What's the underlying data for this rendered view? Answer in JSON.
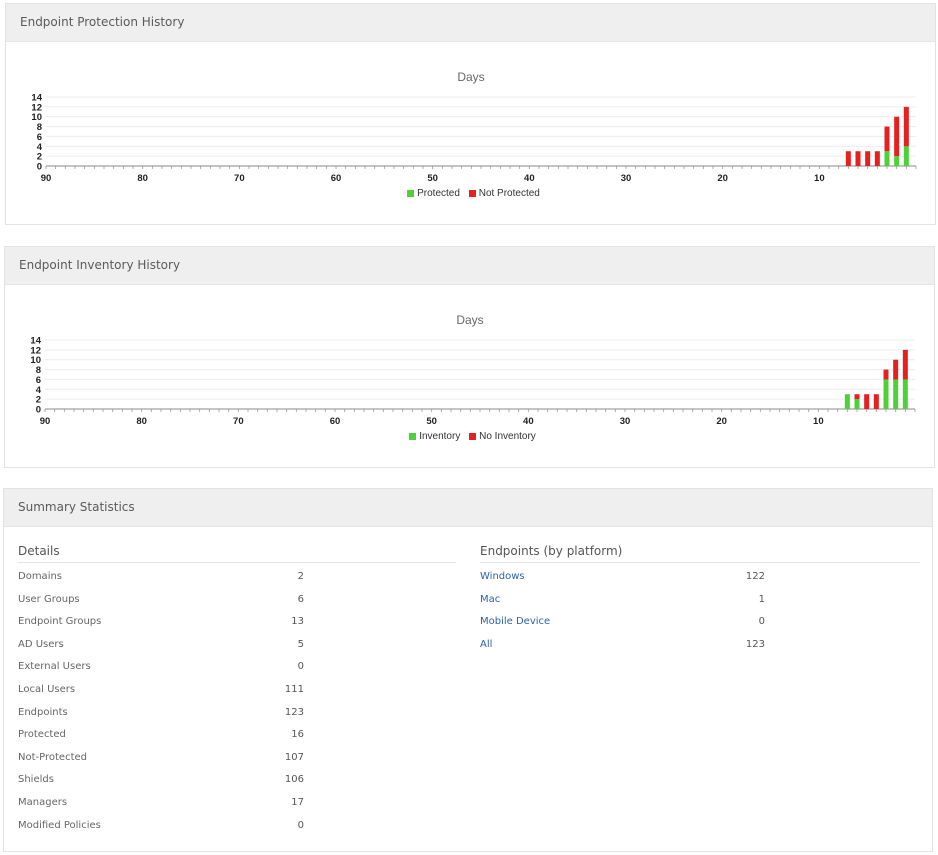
{
  "protection_panel": {
    "title": "Endpoint Protection History",
    "legend": [
      {
        "label": "Protected",
        "color": "#4cd137"
      },
      {
        "label": "Not Protected",
        "color": "#e62020"
      }
    ]
  },
  "inventory_panel": {
    "title": "Endpoint Inventory History",
    "legend": [
      {
        "label": "Inventory",
        "color": "#4cd137"
      },
      {
        "label": "No Inventory",
        "color": "#e62020"
      }
    ]
  },
  "summary_panel": {
    "title": "Summary Statistics",
    "details_heading": "Details",
    "details": [
      {
        "label": "Domains",
        "value": "2"
      },
      {
        "label": "User Groups",
        "value": "6"
      },
      {
        "label": "Endpoint Groups",
        "value": "13"
      },
      {
        "label": "AD Users",
        "value": "5"
      },
      {
        "label": "External Users",
        "value": "0"
      },
      {
        "label": "Local Users",
        "value": "111"
      },
      {
        "label": "Endpoints",
        "value": "123"
      },
      {
        "label": "Protected",
        "value": "16"
      },
      {
        "label": "Not-Protected",
        "value": "107"
      },
      {
        "label": "Shields",
        "value": "106"
      },
      {
        "label": "Managers",
        "value": "17"
      },
      {
        "label": "Modified Policies",
        "value": "0"
      }
    ],
    "platform_heading": "Endpoints (by platform)",
    "platforms": [
      {
        "label": "Windows",
        "value": "122"
      },
      {
        "label": "Mac",
        "value": "1"
      },
      {
        "label": "Mobile Device",
        "value": "0"
      },
      {
        "label": "All",
        "value": "123"
      }
    ]
  },
  "chart_data": [
    {
      "type": "bar",
      "stacked": true,
      "title": "Days",
      "x_ticks": [
        90,
        80,
        70,
        60,
        50,
        40,
        30,
        20,
        10
      ],
      "x_reversed": true,
      "xlim": [
        90,
        0
      ],
      "ylim": [
        0,
        14
      ],
      "y_ticks": [
        0,
        2,
        4,
        6,
        8,
        10,
        12,
        14
      ],
      "grid": true,
      "legend_position": "bottom",
      "x": [
        7,
        6,
        5,
        4,
        3,
        2,
        1
      ],
      "series": [
        {
          "name": "Protected",
          "color": "#4cd137",
          "values": [
            0,
            0,
            0,
            0,
            3,
            2,
            4
          ]
        },
        {
          "name": "Not Protected",
          "color": "#e62020",
          "values": [
            3,
            3,
            3,
            3,
            5,
            8,
            8
          ]
        }
      ]
    },
    {
      "type": "bar",
      "stacked": true,
      "title": "Days",
      "x_ticks": [
        90,
        80,
        70,
        60,
        50,
        40,
        30,
        20,
        10
      ],
      "x_reversed": true,
      "xlim": [
        90,
        0
      ],
      "ylim": [
        0,
        14
      ],
      "y_ticks": [
        0,
        2,
        4,
        6,
        8,
        10,
        12,
        14
      ],
      "grid": true,
      "legend_position": "bottom",
      "x": [
        7,
        6,
        5,
        4,
        3,
        2,
        1
      ],
      "series": [
        {
          "name": "Inventory",
          "color": "#4cd137",
          "values": [
            3,
            2,
            0,
            0,
            6,
            6,
            6
          ]
        },
        {
          "name": "No Inventory",
          "color": "#e62020",
          "values": [
            0,
            1,
            3,
            3,
            2,
            4,
            6
          ]
        }
      ]
    }
  ]
}
